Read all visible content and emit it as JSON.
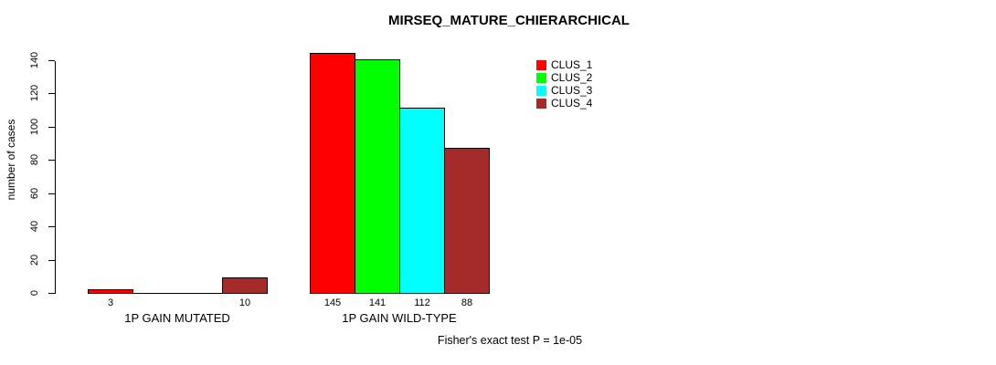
{
  "page": {
    "title": "MIRSEQ_MATURE_CHIERARCHICAL",
    "annotation": "Fisher's exact test P = 1e-05"
  },
  "chart_data": {
    "type": "bar",
    "title": "MIRSEQ_MATURE_CHIERARCHICAL",
    "xlabel": "",
    "ylabel": "number of cases",
    "categories": [
      "1P GAIN MUTATED",
      "1P GAIN WILD-TYPE"
    ],
    "series": [
      {
        "name": "CLUS_1",
        "color": "#FF0000",
        "values": [
          3,
          145
        ]
      },
      {
        "name": "CLUS_2",
        "color": "#00FF00",
        "values": [
          0,
          141
        ]
      },
      {
        "name": "CLUS_3",
        "color": "#00FFFF",
        "values": [
          0,
          112
        ]
      },
      {
        "name": "CLUS_4",
        "color": "#A52A2A",
        "values": [
          10,
          88
        ]
      }
    ],
    "bar_value_labels": [
      [
        "3",
        "",
        "",
        "10"
      ],
      [
        "145",
        "141",
        "112",
        "88"
      ]
    ],
    "yticks": [
      0,
      20,
      40,
      60,
      80,
      100,
      120,
      140
    ],
    "ylim": [
      0,
      140
    ],
    "grid": false,
    "legend_position": "top-right",
    "annotation": "Fisher's exact test P = 1e-05"
  }
}
